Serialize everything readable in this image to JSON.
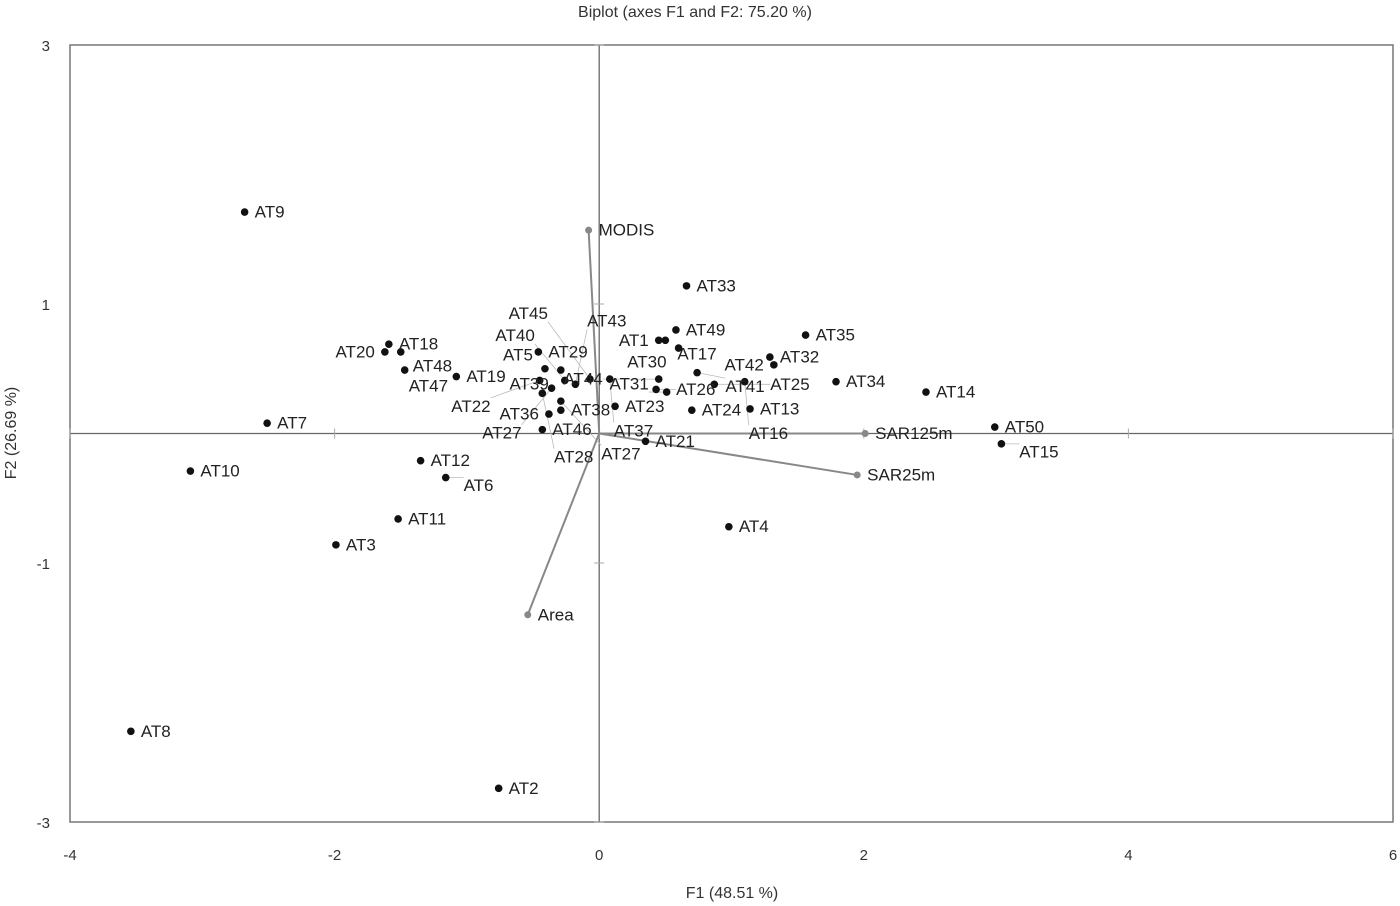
{
  "chart_data": {
    "type": "scatter",
    "title": "Biplot (axes F1 and F2: 75.20 %)",
    "xlabel": "F1 (48.51 %)",
    "ylabel": "F2 (26.69 %)",
    "xlim": [
      -4,
      6
    ],
    "ylim": [
      -3,
      3
    ],
    "xticks": [
      "-4",
      "-2",
      "0",
      "2",
      "4",
      "6"
    ],
    "yticks": [
      "3",
      "1",
      "-1",
      "-3"
    ],
    "grid": false,
    "colors": {
      "points": "#111111",
      "vectors": "#888888",
      "axes": "#666666"
    },
    "observations": [
      {
        "name": "AT9",
        "x": -2.68,
        "y": 1.71
      },
      {
        "name": "AT33",
        "x": 0.66,
        "y": 1.14
      },
      {
        "name": "AT49",
        "x": 0.58,
        "y": 0.8
      },
      {
        "name": "AT1",
        "x": 0.45,
        "y": 0.72
      },
      {
        "name": "AT17",
        "x": 0.5,
        "y": 0.72
      },
      {
        "name": "AT30",
        "x": 0.6,
        "y": 0.66
      },
      {
        "name": "AT35",
        "x": 1.56,
        "y": 0.76
      },
      {
        "name": "AT18",
        "x": -1.59,
        "y": 0.69
      },
      {
        "name": "AT20",
        "x": -1.62,
        "y": 0.63
      },
      {
        "name": "AT48",
        "x": -1.5,
        "y": 0.63
      },
      {
        "name": "AT47",
        "x": -1.47,
        "y": 0.49
      },
      {
        "name": "AT19",
        "x": -1.08,
        "y": 0.44
      },
      {
        "name": "AT29",
        "x": -0.46,
        "y": 0.63
      },
      {
        "name": "AT32",
        "x": 1.29,
        "y": 0.59
      },
      {
        "name": "AT42",
        "x": 1.32,
        "y": 0.53
      },
      {
        "name": "AT34",
        "x": 1.79,
        "y": 0.4
      },
      {
        "name": "AT14",
        "x": 2.47,
        "y": 0.32
      },
      {
        "name": "AT7",
        "x": -2.51,
        "y": 0.08
      },
      {
        "name": "AT50",
        "x": 2.99,
        "y": 0.05
      },
      {
        "name": "AT15",
        "x": 3.04,
        "y": -0.08
      },
      {
        "name": "AT10",
        "x": -3.09,
        "y": -0.29
      },
      {
        "name": "AT12",
        "x": -1.35,
        "y": -0.21
      },
      {
        "name": "AT6",
        "x": -1.16,
        "y": -0.34
      },
      {
        "name": "AT11",
        "x": -1.52,
        "y": -0.66
      },
      {
        "name": "AT3",
        "x": -1.99,
        "y": -0.86
      },
      {
        "name": "AT4",
        "x": 0.98,
        "y": -0.72
      },
      {
        "name": "AT8",
        "x": -3.54,
        "y": -2.3
      },
      {
        "name": "AT2",
        "x": -0.76,
        "y": -2.74
      },
      {
        "name": "AT21",
        "x": 0.35,
        "y": -0.06
      },
      {
        "name": "AT46",
        "x": -0.43,
        "y": 0.03
      },
      {
        "name": "AT38",
        "x": -0.29,
        "y": 0.18
      },
      {
        "name": "AT36",
        "x": -0.38,
        "y": 0.15
      },
      {
        "name": "AT23",
        "x": 0.12,
        "y": 0.21
      },
      {
        "name": "AT24",
        "x": 0.7,
        "y": 0.18
      },
      {
        "name": "AT13",
        "x": 1.14,
        "y": 0.19
      },
      {
        "name": "AT31",
        "x": 0.51,
        "y": 0.32
      },
      {
        "name": "AT26",
        "x": 0.43,
        "y": 0.34
      },
      {
        "name": "AT41",
        "x": 0.74,
        "y": 0.47
      },
      {
        "name": "AT25",
        "x": 0.87,
        "y": 0.38
      },
      {
        "name": "AT16",
        "x": 1.1,
        "y": 0.4
      },
      {
        "name": "AT44",
        "x": 0.45,
        "y": 0.42
      },
      {
        "name": "AT37",
        "x": 0.08,
        "y": 0.42
      },
      {
        "name": "AT39",
        "x": -0.29,
        "y": 0.49
      },
      {
        "name": "AT5",
        "x": -0.41,
        "y": 0.5
      },
      {
        "name": "AT22",
        "x": -0.45,
        "y": 0.41
      },
      {
        "name": "AT27",
        "x": -0.36,
        "y": 0.35
      },
      {
        "name": "AT28",
        "x": -0.43,
        "y": 0.31
      },
      {
        "name": "AT40",
        "x": -0.26,
        "y": 0.41
      },
      {
        "name": "AT43",
        "x": -0.18,
        "y": 0.38
      },
      {
        "name": "AT45",
        "x": -0.07,
        "y": 0.42
      },
      {
        "name": "AT27b",
        "x": -0.29,
        "y": 0.25
      }
    ],
    "variables": [
      {
        "name": "MODIS",
        "x": -0.08,
        "y": 1.57
      },
      {
        "name": "SAR125m",
        "x": 2.01,
        "y": 0.0
      },
      {
        "name": "SAR25m",
        "x": 1.95,
        "y": -0.32
      },
      {
        "name": "Area",
        "x": -0.54,
        "y": -1.4
      }
    ]
  }
}
